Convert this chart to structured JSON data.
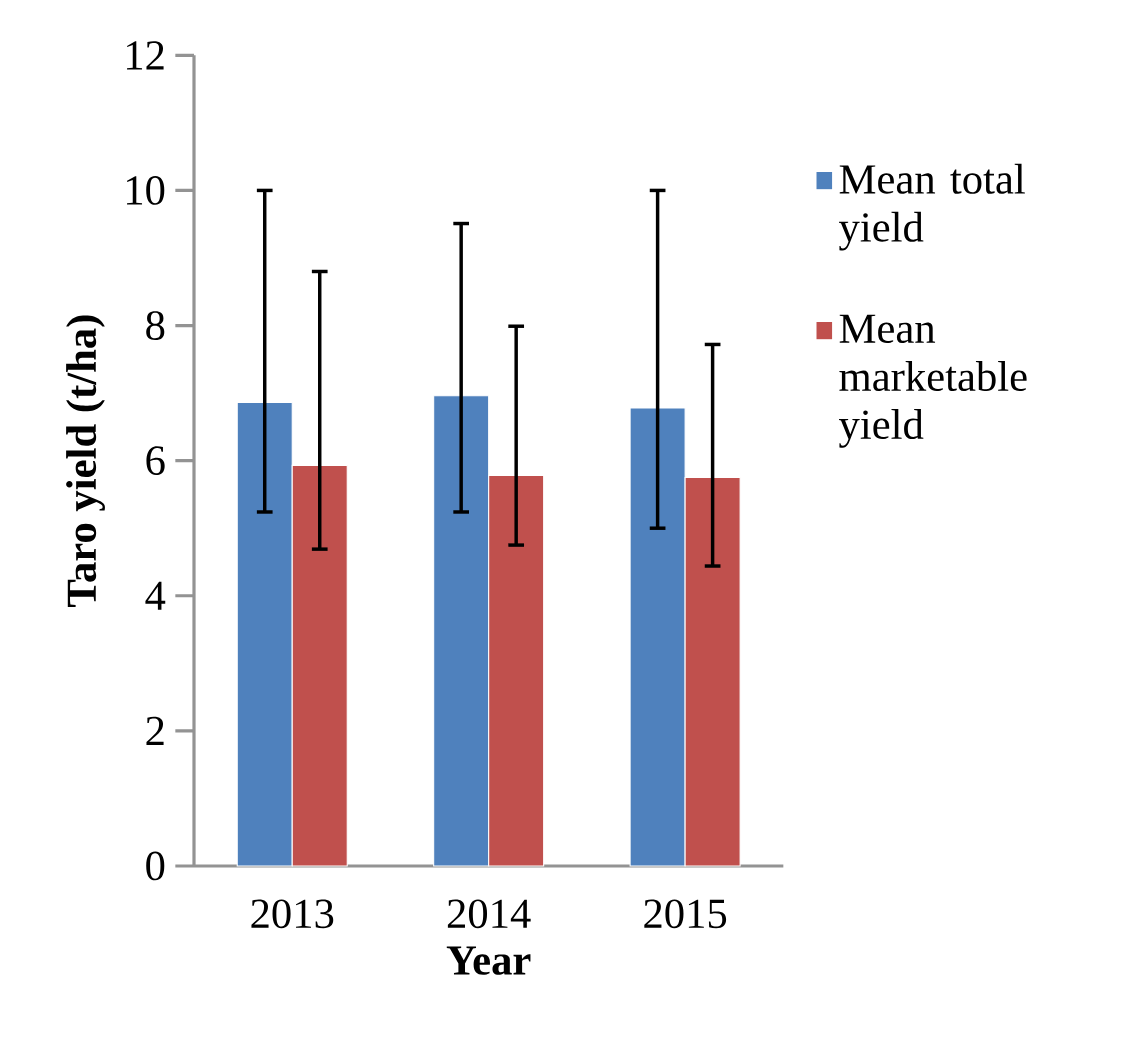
{
  "chart_data": {
    "type": "bar",
    "xlabel": "Year",
    "ylabel": "Taro yield (t/ha)",
    "categories": [
      "2013",
      "2014",
      "2015"
    ],
    "series": [
      {
        "name": "Mean total yield",
        "color": "#4f81bd",
        "values": [
          6.86,
          6.96,
          6.78
        ],
        "errors": [
          [
            5.24,
            10.0
          ],
          [
            5.24,
            9.51
          ],
          [
            5.0,
            10.0
          ]
        ]
      },
      {
        "name": "Mean marketable yield",
        "color": "#c0504d",
        "values": [
          5.93,
          5.78,
          5.75
        ],
        "errors": [
          [
            4.69,
            8.8
          ],
          [
            4.75,
            7.99
          ],
          [
            4.44,
            7.72
          ]
        ]
      }
    ],
    "ylim": [
      0,
      12
    ],
    "yticks": [
      0,
      2,
      4,
      6,
      8,
      10,
      12
    ],
    "legend": "right",
    "grid": false
  }
}
